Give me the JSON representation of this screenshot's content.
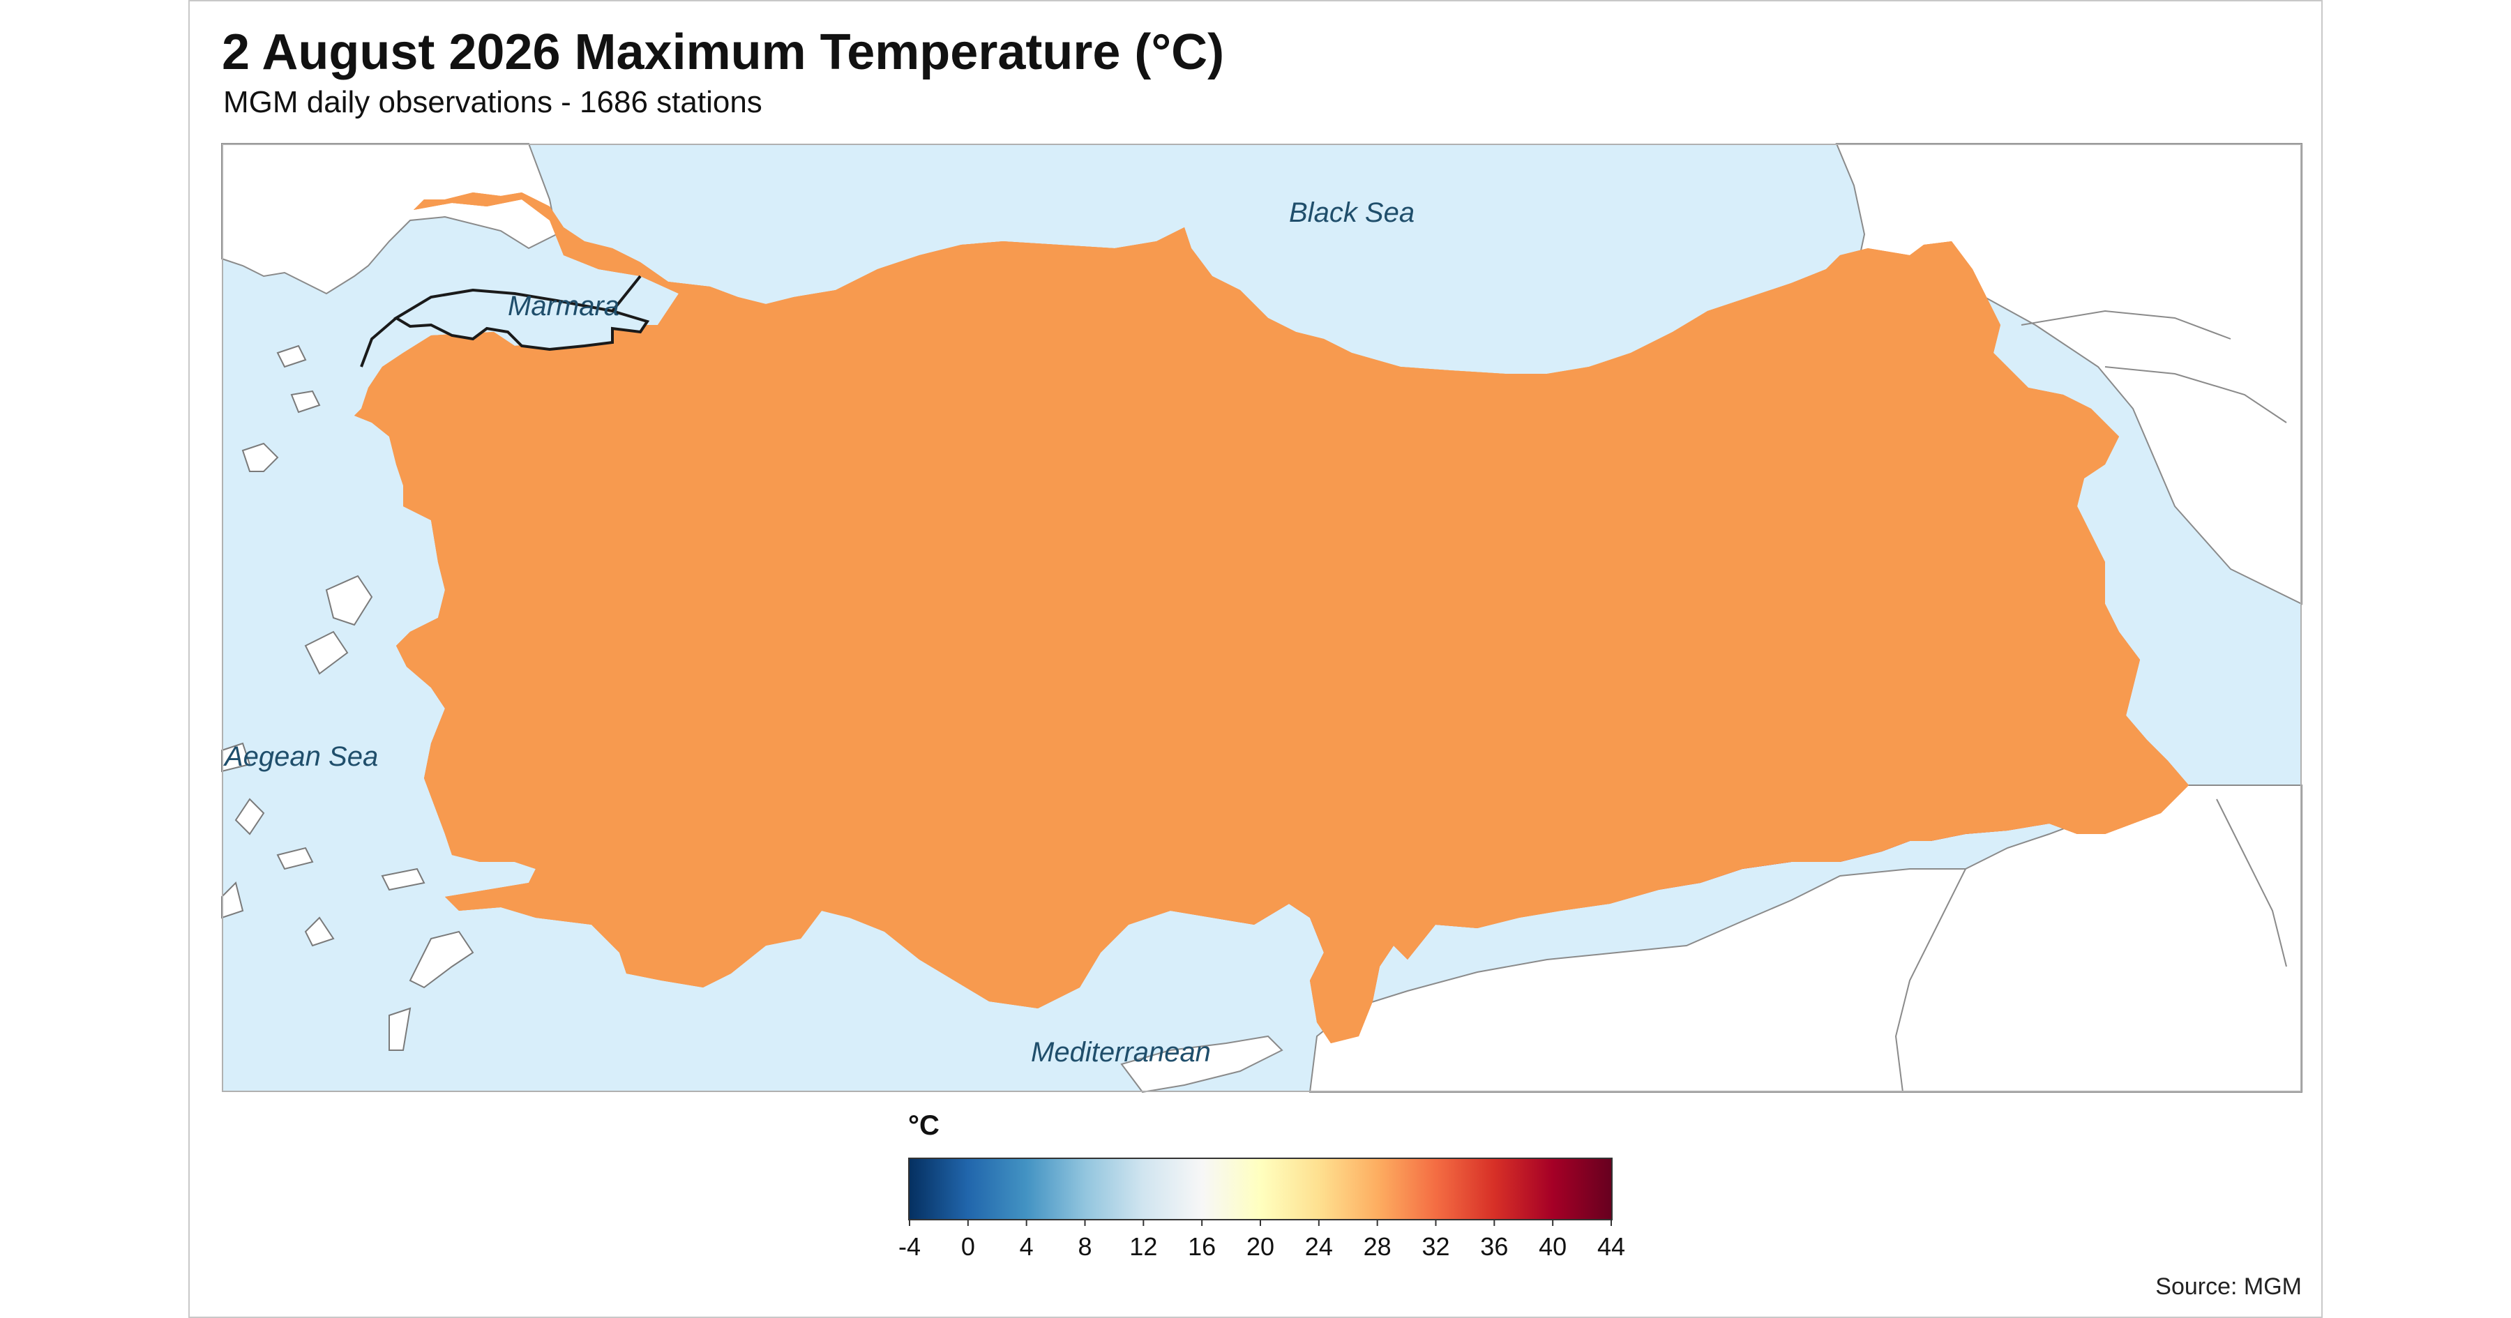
{
  "title": "2 August 2026 Maximum Temperature (°C)",
  "subtitle": "MGM daily observations - 1686 stations",
  "map": {
    "sea_labels": [
      {
        "name": "black_sea",
        "text": "Black Sea"
      },
      {
        "name": "marmara",
        "text": "Marmara"
      },
      {
        "name": "aegean",
        "text": "Aegean Sea"
      },
      {
        "name": "mediterranean",
        "text": "Mediterranean"
      }
    ],
    "colors": {
      "sea": "#d8eefa",
      "neighbor_land": "#ffffff",
      "border": "#1a1a1a",
      "hot_core": "#a50026",
      "hot": "#d7301f",
      "warm": "#f46d43",
      "mild": "#fdae61",
      "cool_north": "#fee090"
    }
  },
  "legend": {
    "title": "°C",
    "min": -4,
    "max": 44,
    "ticks": [
      "-4",
      "0",
      "4",
      "8",
      "12",
      "16",
      "20",
      "24",
      "28",
      "32",
      "36",
      "40",
      "44"
    ],
    "colormap": [
      "#053061",
      "#2166ac",
      "#4393c3",
      "#92c5de",
      "#d1e5f0",
      "#f7f7f7",
      "#ffffbf",
      "#fee090",
      "#fdae61",
      "#f46d43",
      "#d73027",
      "#a50026",
      "#67001f"
    ]
  },
  "source": "Source: MGM"
}
